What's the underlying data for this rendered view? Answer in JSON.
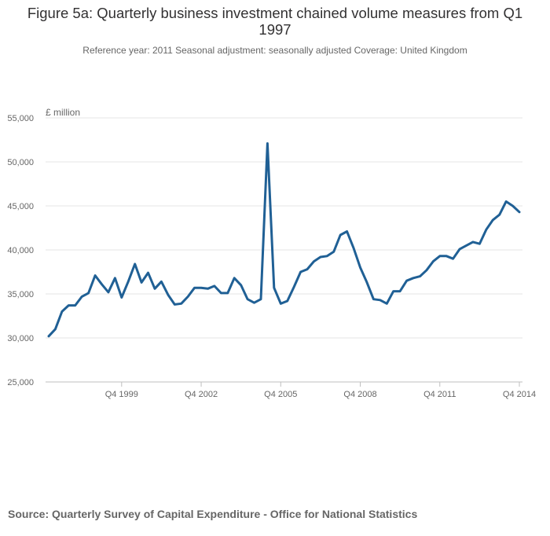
{
  "chart_data": {
    "type": "line",
    "title": "Figure 5a: Quarterly business investment chained volume measures from Q1 1997",
    "subtitle": "Reference year: 2011 Seasonal adjustment: seasonally adjusted Coverage: United Kingdom",
    "ylabel": "£ million",
    "xlabel": "",
    "ylim": [
      25000,
      55000
    ],
    "yticks": [
      25000,
      30000,
      35000,
      40000,
      45000,
      50000,
      55000
    ],
    "ytick_labels": [
      "25,000",
      "30,000",
      "35,000",
      "40,000",
      "45,000",
      "50,000",
      "55,000"
    ],
    "xtick_labels": [
      "Q4 1999",
      "Q4 2002",
      "Q4 2005",
      "Q4 2008",
      "Q4 2011",
      "Q4 2014"
    ],
    "xtick_index": [
      11,
      23,
      35,
      47,
      59,
      71
    ],
    "grid": true,
    "color": "#206095",
    "categories": [
      "Q1 1997",
      "Q2 1997",
      "Q3 1997",
      "Q4 1997",
      "Q1 1998",
      "Q2 1998",
      "Q3 1998",
      "Q4 1998",
      "Q1 1999",
      "Q2 1999",
      "Q3 1999",
      "Q4 1999",
      "Q1 2000",
      "Q2 2000",
      "Q3 2000",
      "Q4 2000",
      "Q1 2001",
      "Q2 2001",
      "Q3 2001",
      "Q4 2001",
      "Q1 2002",
      "Q2 2002",
      "Q3 2002",
      "Q4 2002",
      "Q1 2003",
      "Q2 2003",
      "Q3 2003",
      "Q4 2003",
      "Q1 2004",
      "Q2 2004",
      "Q3 2004",
      "Q4 2004",
      "Q1 2005",
      "Q2 2005",
      "Q3 2005",
      "Q4 2005",
      "Q1 2006",
      "Q2 2006",
      "Q3 2006",
      "Q4 2006",
      "Q1 2007",
      "Q2 2007",
      "Q3 2007",
      "Q4 2007",
      "Q1 2008",
      "Q2 2008",
      "Q3 2008",
      "Q4 2008",
      "Q1 2009",
      "Q2 2009",
      "Q3 2009",
      "Q4 2009",
      "Q1 2010",
      "Q2 2010",
      "Q3 2010",
      "Q4 2010",
      "Q1 2011",
      "Q2 2011",
      "Q3 2011",
      "Q4 2011",
      "Q1 2012",
      "Q2 2012",
      "Q3 2012",
      "Q4 2012",
      "Q1 2013",
      "Q2 2013",
      "Q3 2013",
      "Q4 2013",
      "Q1 2014",
      "Q2 2014",
      "Q3 2014",
      "Q4 2014"
    ],
    "values": [
      30200,
      31000,
      33000,
      33700,
      33700,
      34700,
      35100,
      37100,
      36100,
      35200,
      36800,
      34600,
      36400,
      38400,
      36300,
      37400,
      35600,
      36400,
      34900,
      33800,
      33900,
      34700,
      35700,
      35700,
      35600,
      35900,
      35100,
      35100,
      36800,
      36000,
      34400,
      34000,
      34400,
      52100,
      35700,
      33900,
      34200,
      35800,
      37500,
      37800,
      38700,
      39200,
      39300,
      39800,
      41700,
      42100,
      40200,
      38000,
      36300,
      34400,
      34300,
      33900,
      35300,
      35300,
      36500,
      36800,
      37000,
      37700,
      38700,
      39300,
      39300,
      39000,
      40100,
      40500,
      40900,
      40700,
      42300,
      43400,
      44000,
      45500,
      45000,
      44300
    ]
  },
  "source": "Source: Quarterly Survey of Capital Expenditure - Office for National Statistics"
}
